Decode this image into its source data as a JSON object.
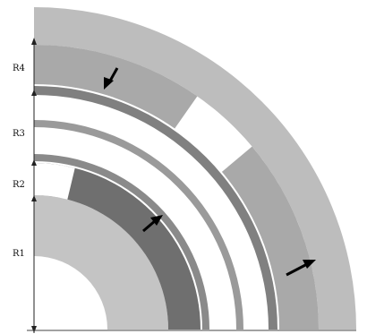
{
  "labels": {
    "r1": "R1",
    "r2": "R2",
    "r3": "R3",
    "r4": "R4"
  },
  "colors": {
    "background": "#ffffff",
    "outer_band": "#bdbdbd",
    "light_band": "#c4c4c4",
    "medium_ring": "#9a9a9a",
    "dark_ring": "#808080",
    "dark_segment": "#6f6f6f",
    "mid_segment": "#a9a9a9",
    "arrow": "#000000",
    "axis": "#222222"
  },
  "icons": {
    "arrow_top": "arrow-down-left-icon",
    "arrow_middle": "arrow-up-right-icon",
    "arrow_right": "arrow-right-icon"
  }
}
